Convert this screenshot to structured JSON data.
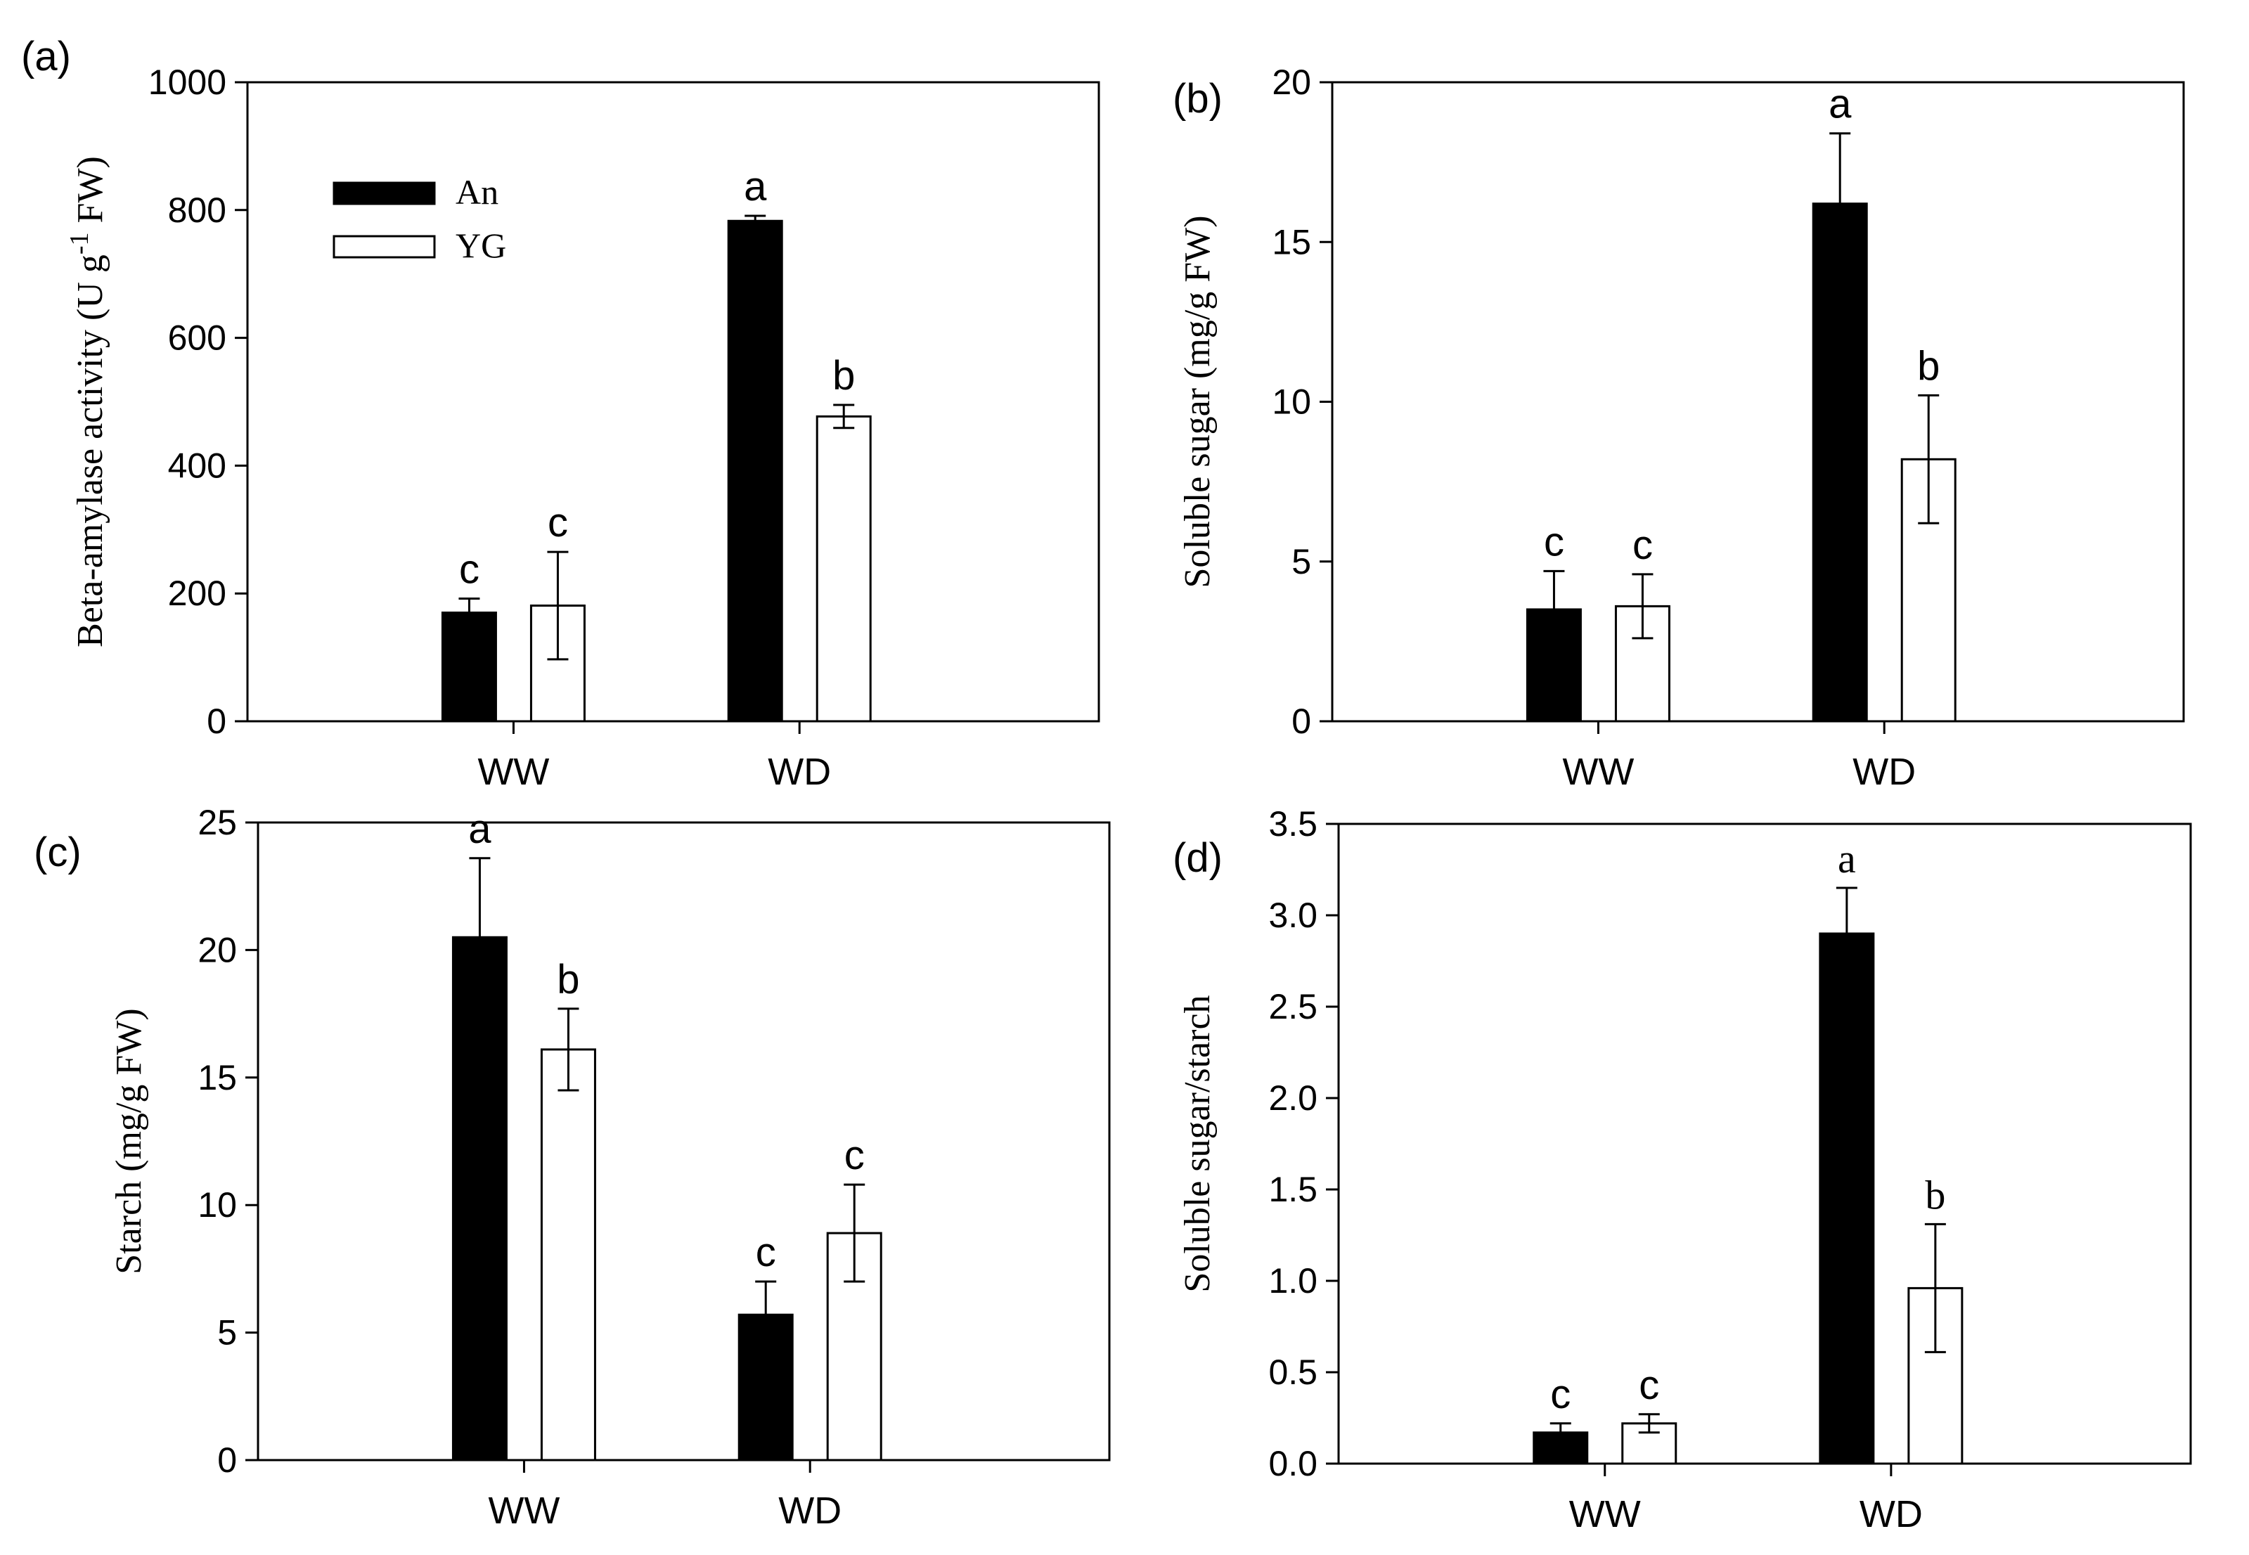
{
  "legend": {
    "entries": [
      {
        "name": "An",
        "fill": "#000000"
      },
      {
        "name": "YG",
        "fill": "#ffffff"
      }
    ]
  },
  "chart_data": [
    {
      "panel": "(a)",
      "type": "bar",
      "categories": [
        "WW",
        "WD"
      ],
      "ylabel": "Beta-amylase activity (U g-1 FW)",
      "ylabel_main": "Beta-amylase activity (U g",
      "ylabel_sup": "-1",
      "ylabel_tail": " FW)",
      "ylim": [
        0,
        1000
      ],
      "yticks": [
        0,
        200,
        400,
        600,
        800,
        1000
      ],
      "tick_labels": [
        "0",
        "200",
        "400",
        "600",
        "800",
        "1000"
      ],
      "letter_font": "sans",
      "show_legend": true,
      "series": [
        {
          "name": "An",
          "values": [
            170,
            783
          ],
          "errors": [
            22,
            8
          ],
          "letters": [
            "c",
            "a"
          ]
        },
        {
          "name": "YG",
          "values": [
            181,
            477
          ],
          "errors": [
            84,
            18
          ],
          "letters": [
            "c",
            "b"
          ]
        }
      ]
    },
    {
      "panel": "(b)",
      "type": "bar",
      "categories": [
        "WW",
        "WD"
      ],
      "ylabel": "Soluble sugar (mg/g FW)",
      "ylim": [
        0,
        20
      ],
      "yticks": [
        0,
        5,
        10,
        15,
        20
      ],
      "tick_labels": [
        "0",
        "5",
        "10",
        "15",
        "20"
      ],
      "letter_font": "sans",
      "show_legend": false,
      "series": [
        {
          "name": "An",
          "values": [
            3.5,
            16.2
          ],
          "errors": [
            1.2,
            2.2
          ],
          "letters": [
            "c",
            "a"
          ]
        },
        {
          "name": "YG",
          "values": [
            3.6,
            8.2
          ],
          "errors": [
            1.0,
            2.0
          ],
          "letters": [
            "c",
            "b"
          ]
        }
      ]
    },
    {
      "panel": "(c)",
      "type": "bar",
      "categories": [
        "WW",
        "WD"
      ],
      "ylabel": "Starch (mg/g FW)",
      "ylim": [
        0,
        25
      ],
      "yticks": [
        0,
        5,
        10,
        15,
        20,
        25
      ],
      "tick_labels": [
        "0",
        "5",
        "10",
        "15",
        "20",
        "25"
      ],
      "letter_font": "sans",
      "show_legend": false,
      "series": [
        {
          "name": "An",
          "values": [
            20.5,
            5.7
          ],
          "errors": [
            3.1,
            1.3
          ],
          "letters": [
            "a",
            "c"
          ]
        },
        {
          "name": "YG",
          "values": [
            16.1,
            8.9
          ],
          "errors": [
            1.6,
            1.9
          ],
          "letters": [
            "b",
            "c"
          ]
        }
      ]
    },
    {
      "panel": "(d)",
      "type": "bar",
      "categories": [
        "WW",
        "WD"
      ],
      "ylabel": "Soluble sugar/starch",
      "ylim": [
        0,
        3.5
      ],
      "yticks": [
        0,
        0.5,
        1.0,
        1.5,
        2.0,
        2.5,
        3.0,
        3.5
      ],
      "tick_labels": [
        "0.0",
        "0.5",
        "1.0",
        "1.5",
        "2.0",
        "2.5",
        "3.0",
        "3.5"
      ],
      "letter_font": "mixed",
      "show_legend": false,
      "series": [
        {
          "name": "An",
          "values": [
            0.17,
            2.9
          ],
          "errors": [
            0.05,
            0.25
          ],
          "letters": [
            "c",
            "a"
          ]
        },
        {
          "name": "YG",
          "values": [
            0.22,
            0.96
          ],
          "errors": [
            0.05,
            0.35
          ],
          "letters": [
            "c",
            "b"
          ]
        }
      ]
    }
  ]
}
